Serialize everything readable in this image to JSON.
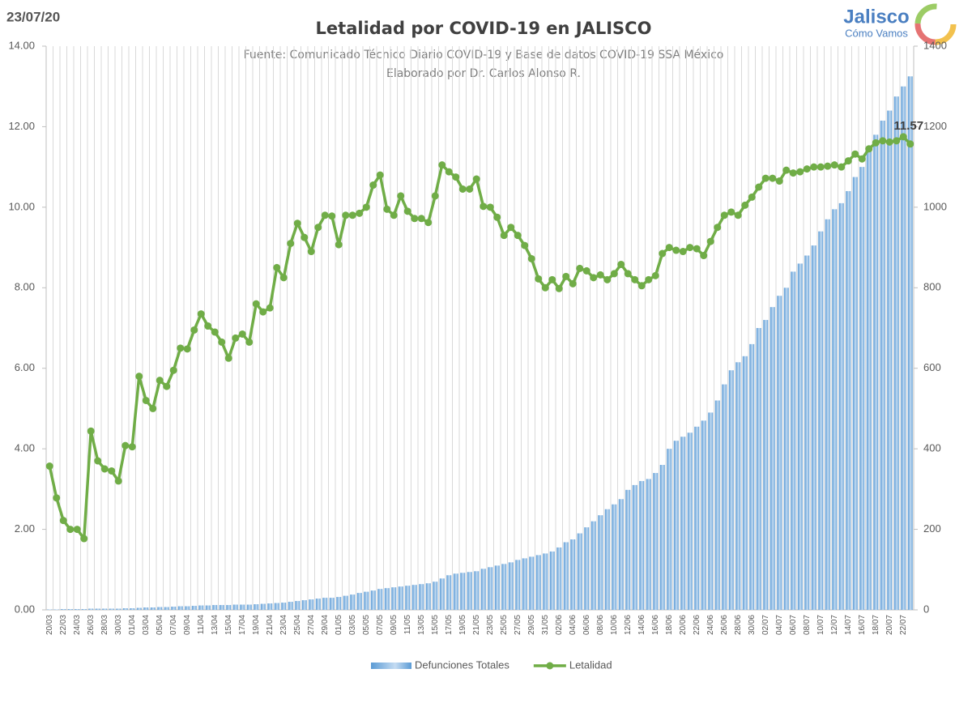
{
  "header": {
    "date": "23/07/20",
    "logo": "Jalisco",
    "logo_sub": "Cómo Vamos"
  },
  "chart_data": {
    "type": "bar-line",
    "title": "Letalidad por COVID-19 en JALISCO",
    "subtitle": [
      "Fuente: Comunicado Técnico Diario COVID-19 y Base de datos COVID-19 SSA México",
      "Elaborado por Dr. Carlos Alonso R."
    ],
    "categories": [
      "20/03",
      null,
      "22/03",
      null,
      "24/03",
      null,
      "26/03",
      null,
      "28/03",
      null,
      "30/03",
      null,
      "01/04",
      null,
      "03/04",
      null,
      "05/04",
      null,
      "07/04",
      null,
      "09/04",
      null,
      "11/04",
      null,
      "13/04",
      null,
      "15/04",
      null,
      "17/04",
      null,
      "19/04",
      null,
      "21/04",
      null,
      "23/04",
      null,
      "25/04",
      null,
      "27/04",
      null,
      "29/04",
      null,
      "01/05",
      null,
      "03/05",
      null,
      "05/05",
      null,
      "07/05",
      null,
      "09/05",
      null,
      "11/05",
      null,
      "13/05",
      null,
      "15/05",
      null,
      "17/05",
      null,
      "19/05",
      null,
      "21/05",
      null,
      "23/05",
      null,
      "25/05",
      null,
      "27/05",
      null,
      "29/05",
      null,
      "31/05",
      null,
      "02/06",
      null,
      "04/06",
      null,
      "06/06",
      null,
      "08/06",
      null,
      "10/06",
      null,
      "12/06",
      null,
      "14/06",
      null,
      "16/06",
      null,
      "18/06",
      null,
      "20/06",
      null,
      "22/06",
      null,
      "24/06",
      null,
      "26/06",
      null,
      "28/06",
      null,
      "30/06",
      null,
      "02/07",
      null,
      "04/07",
      null,
      "06/07",
      null,
      "08/07",
      null,
      "10/07",
      null,
      "12/07",
      null,
      "14/07",
      null,
      "16/07",
      null,
      "18/07",
      null,
      "20/07",
      null,
      "22/07",
      null
    ],
    "series": [
      {
        "name": "Defunciones Totales",
        "color": "#5b9bd5",
        "axis": "y2",
        "kind": "bar",
        "values": [
          1,
          1,
          2,
          2,
          2,
          2,
          3,
          3,
          3,
          3,
          3,
          4,
          4,
          5,
          6,
          6,
          7,
          7,
          8,
          9,
          9,
          10,
          11,
          11,
          12,
          12,
          12,
          13,
          13,
          13,
          14,
          15,
          16,
          17,
          18,
          20,
          22,
          24,
          26,
          28,
          30,
          30,
          32,
          35,
          38,
          42,
          45,
          48,
          52,
          54,
          56,
          58,
          60,
          62,
          64,
          66,
          70,
          78,
          86,
          90,
          92,
          94,
          96,
          102,
          106,
          110,
          114,
          118,
          124,
          128,
          132,
          136,
          140,
          145,
          155,
          168,
          175,
          190,
          205,
          220,
          235,
          250,
          262,
          275,
          298,
          310,
          320,
          325,
          340,
          360,
          400,
          420,
          430,
          440,
          455,
          470,
          490,
          520,
          560,
          595,
          615,
          630,
          660,
          700,
          720,
          752,
          780,
          800,
          840,
          860,
          880,
          905,
          940,
          970,
          995,
          1010,
          1040,
          1075,
          1100,
          1140,
          1180,
          1215,
          1240,
          1275,
          1300,
          1325
        ]
      },
      {
        "name": "Letalidad",
        "color": "#70ad47",
        "axis": "y",
        "kind": "line",
        "label": "last",
        "values": [
          3.57,
          2.78,
          2.22,
          2.0,
          2.0,
          1.77,
          4.44,
          3.7,
          3.5,
          3.45,
          3.2,
          4.08,
          4.05,
          5.8,
          5.2,
          5.0,
          5.7,
          5.55,
          5.95,
          6.5,
          6.48,
          6.95,
          7.35,
          7.05,
          6.9,
          6.65,
          6.25,
          6.75,
          6.85,
          6.65,
          7.6,
          7.4,
          7.5,
          8.5,
          8.25,
          9.1,
          9.6,
          9.25,
          8.9,
          9.5,
          9.8,
          9.78,
          9.07,
          9.8,
          9.8,
          9.85,
          10.0,
          10.55,
          10.8,
          9.95,
          9.8,
          10.28,
          9.9,
          9.72,
          9.72,
          9.62,
          10.28,
          11.05,
          10.88,
          10.75,
          10.45,
          10.45,
          10.7,
          10.02,
          10.0,
          9.75,
          9.3,
          9.5,
          9.3,
          9.05,
          8.72,
          8.22,
          8.0,
          8.2,
          7.98,
          8.28,
          8.1,
          8.48,
          8.42,
          8.25,
          8.32,
          8.2,
          8.35,
          8.58,
          8.35,
          8.2,
          8.05,
          8.2,
          8.3,
          8.85,
          9.0,
          8.93,
          8.9,
          9.0,
          8.97,
          8.8,
          9.15,
          9.5,
          9.8,
          9.88,
          9.8,
          10.05,
          10.25,
          10.5,
          10.72,
          10.72,
          10.65,
          10.92,
          10.85,
          10.88,
          10.95,
          11.0,
          11.0,
          11.02,
          11.05,
          11.0,
          11.15,
          11.32,
          11.2,
          11.45,
          11.6,
          11.65,
          11.62,
          11.65,
          11.75,
          11.57
        ]
      }
    ],
    "ylim": [
      0,
      14
    ],
    "yticks": [
      {
        "value": 0,
        "label": "0.00"
      },
      {
        "value": 2,
        "label": "2.00"
      },
      {
        "value": 4,
        "label": "4.00"
      },
      {
        "value": 6,
        "label": "6.00"
      },
      {
        "value": 8,
        "label": "8.00"
      },
      {
        "value": 10,
        "label": "10.00"
      },
      {
        "value": 12,
        "label": "12.00"
      },
      {
        "value": 14,
        "label": "14.00"
      }
    ],
    "y2lim": [
      0,
      1400
    ],
    "y2ticks": [
      0,
      200,
      400,
      600,
      800,
      1000,
      1200,
      1400
    ],
    "grid": "x",
    "legend": "bottom"
  }
}
